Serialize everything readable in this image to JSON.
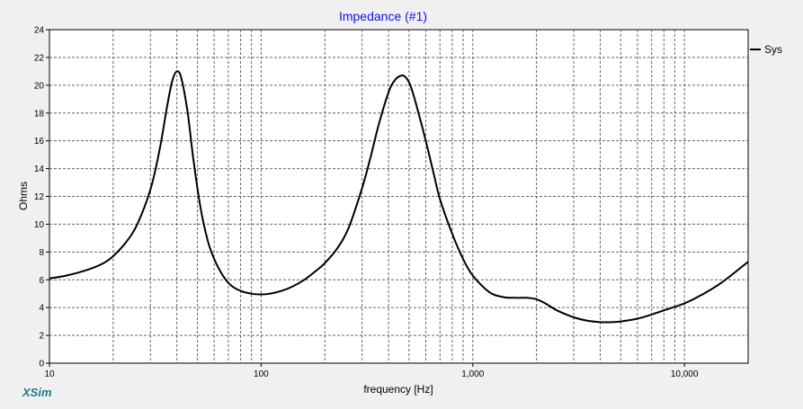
{
  "colors": {
    "background": "#f0f0f0",
    "plot": "#ffffff",
    "title": "#1010ee",
    "brand": "#1a7a8a",
    "grid": "#666666",
    "curve": "#000000"
  },
  "chart_data": {
    "type": "line",
    "title": "Impedance (#1)",
    "xlabel": "frequency [Hz]",
    "ylabel": "Ohms",
    "xscale": "log",
    "xlim": [
      10,
      20000
    ],
    "ylim": [
      0,
      24
    ],
    "x_ticks": [
      {
        "value": 10,
        "label": "10"
      },
      {
        "value": 100,
        "label": "100"
      },
      {
        "value": 1000,
        "label": "1,000"
      },
      {
        "value": 10000,
        "label": "10,000"
      }
    ],
    "y_ticks": [
      {
        "value": 0,
        "label": "0"
      },
      {
        "value": 2,
        "label": "2"
      },
      {
        "value": 4,
        "label": "4"
      },
      {
        "value": 6,
        "label": "6"
      },
      {
        "value": 8,
        "label": "8"
      },
      {
        "value": 10,
        "label": "10"
      },
      {
        "value": 12,
        "label": "12"
      },
      {
        "value": 14,
        "label": "14"
      },
      {
        "value": 16,
        "label": "16"
      },
      {
        "value": 18,
        "label": "18"
      },
      {
        "value": 20,
        "label": "20"
      },
      {
        "value": 22,
        "label": "22"
      },
      {
        "value": 24,
        "label": "24"
      }
    ],
    "grid": true,
    "legend": {
      "placement": "right",
      "entries": [
        "Sys"
      ]
    },
    "series": [
      {
        "name": "Sys",
        "x": [
          10,
          12,
          15,
          18,
          20,
          23,
          26,
          30,
          33,
          36,
          38,
          40,
          42,
          45,
          48,
          52,
          56,
          60,
          66,
          72,
          80,
          90,
          100,
          110,
          125,
          140,
          160,
          180,
          200,
          230,
          260,
          300,
          330,
          360,
          400,
          430,
          460,
          480,
          500,
          520,
          550,
          600,
          650,
          700,
          800,
          900,
          1000,
          1200,
          1400,
          1600,
          1800,
          2000,
          2200,
          2500,
          3000,
          3500,
          4000,
          4500,
          5000,
          6000,
          7000,
          8000,
          10000,
          12000,
          15000,
          20000
        ],
        "y": [
          6.1,
          6.3,
          6.7,
          7.2,
          7.7,
          8.7,
          10.0,
          12.5,
          15.2,
          18.5,
          20.3,
          21.0,
          20.5,
          18.0,
          14.5,
          11.0,
          8.8,
          7.5,
          6.3,
          5.6,
          5.2,
          5.0,
          4.95,
          5.0,
          5.2,
          5.5,
          6.0,
          6.6,
          7.2,
          8.3,
          9.8,
          12.6,
          14.9,
          17.2,
          19.5,
          20.4,
          20.7,
          20.6,
          20.2,
          19.5,
          18.2,
          16.0,
          13.8,
          11.8,
          9.3,
          7.5,
          6.3,
          5.1,
          4.75,
          4.7,
          4.7,
          4.6,
          4.3,
          3.8,
          3.3,
          3.05,
          2.95,
          2.95,
          3.0,
          3.2,
          3.5,
          3.8,
          4.3,
          4.9,
          5.8,
          7.3
        ]
      }
    ]
  }
}
